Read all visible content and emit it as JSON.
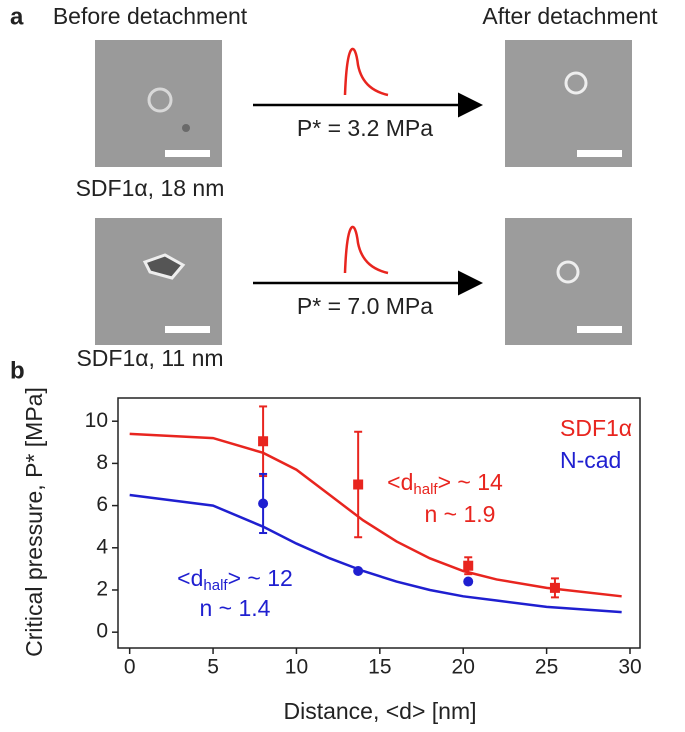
{
  "panel_a": {
    "label": "a",
    "before": "Before detachment",
    "after": "After detachment",
    "rows": [
      {
        "pressure": "P* = 3.2 MPa",
        "caption": "SDF1α, 18 nm"
      },
      {
        "pressure": "P* = 7.0 MPa",
        "caption": "SDF1α, 11 nm"
      }
    ]
  },
  "chart_data": {
    "type": "scatter",
    "label": "b",
    "x_label": "Distance, <d> [nm]",
    "y_label": "Critical pressure, P* [MPa]",
    "xlim": [
      -0.7,
      30.6
    ],
    "ylim": [
      -0.75,
      11.1
    ],
    "xticks": [
      0,
      5,
      10,
      15,
      20,
      25,
      30
    ],
    "yticks": [
      0,
      2,
      4,
      6,
      8,
      10
    ],
    "series": [
      {
        "name": "SDF1α",
        "color": "#e8251f",
        "marker": "square",
        "x": [
          8,
          13.7,
          20.3,
          25.5
        ],
        "values": [
          9.05,
          7.0,
          3.15,
          2.1
        ],
        "errors": [
          1.65,
          2.5,
          0.4,
          0.45
        ],
        "fit_x": [
          0,
          5,
          8,
          10,
          12,
          14,
          16,
          18,
          20,
          22,
          25,
          29.5
        ],
        "fit_y": [
          9.4,
          9.2,
          8.5,
          7.7,
          6.5,
          5.3,
          4.3,
          3.5,
          2.9,
          2.5,
          2.1,
          1.7
        ],
        "annotation": {
          "pre": "<d",
          "sub": "half",
          "post": "> ~ 14",
          "n": "n ~ 1.9"
        }
      },
      {
        "name": "N-cad",
        "color": "#1f1fd0",
        "marker": "circle",
        "x": [
          8,
          13.7,
          20.3
        ],
        "values": [
          6.1,
          2.9,
          2.4
        ],
        "errors": [
          1.4,
          null,
          null
        ],
        "fit_x": [
          0,
          5,
          8,
          10,
          12,
          14,
          16,
          18,
          20,
          22,
          25,
          29.5
        ],
        "fit_y": [
          6.5,
          6.0,
          5.0,
          4.2,
          3.5,
          2.9,
          2.4,
          2.0,
          1.7,
          1.5,
          1.2,
          0.95
        ],
        "annotation": {
          "pre": "<d",
          "sub": "half",
          "post": "> ~ 12",
          "n": "n ~ 1.4"
        }
      }
    ]
  }
}
